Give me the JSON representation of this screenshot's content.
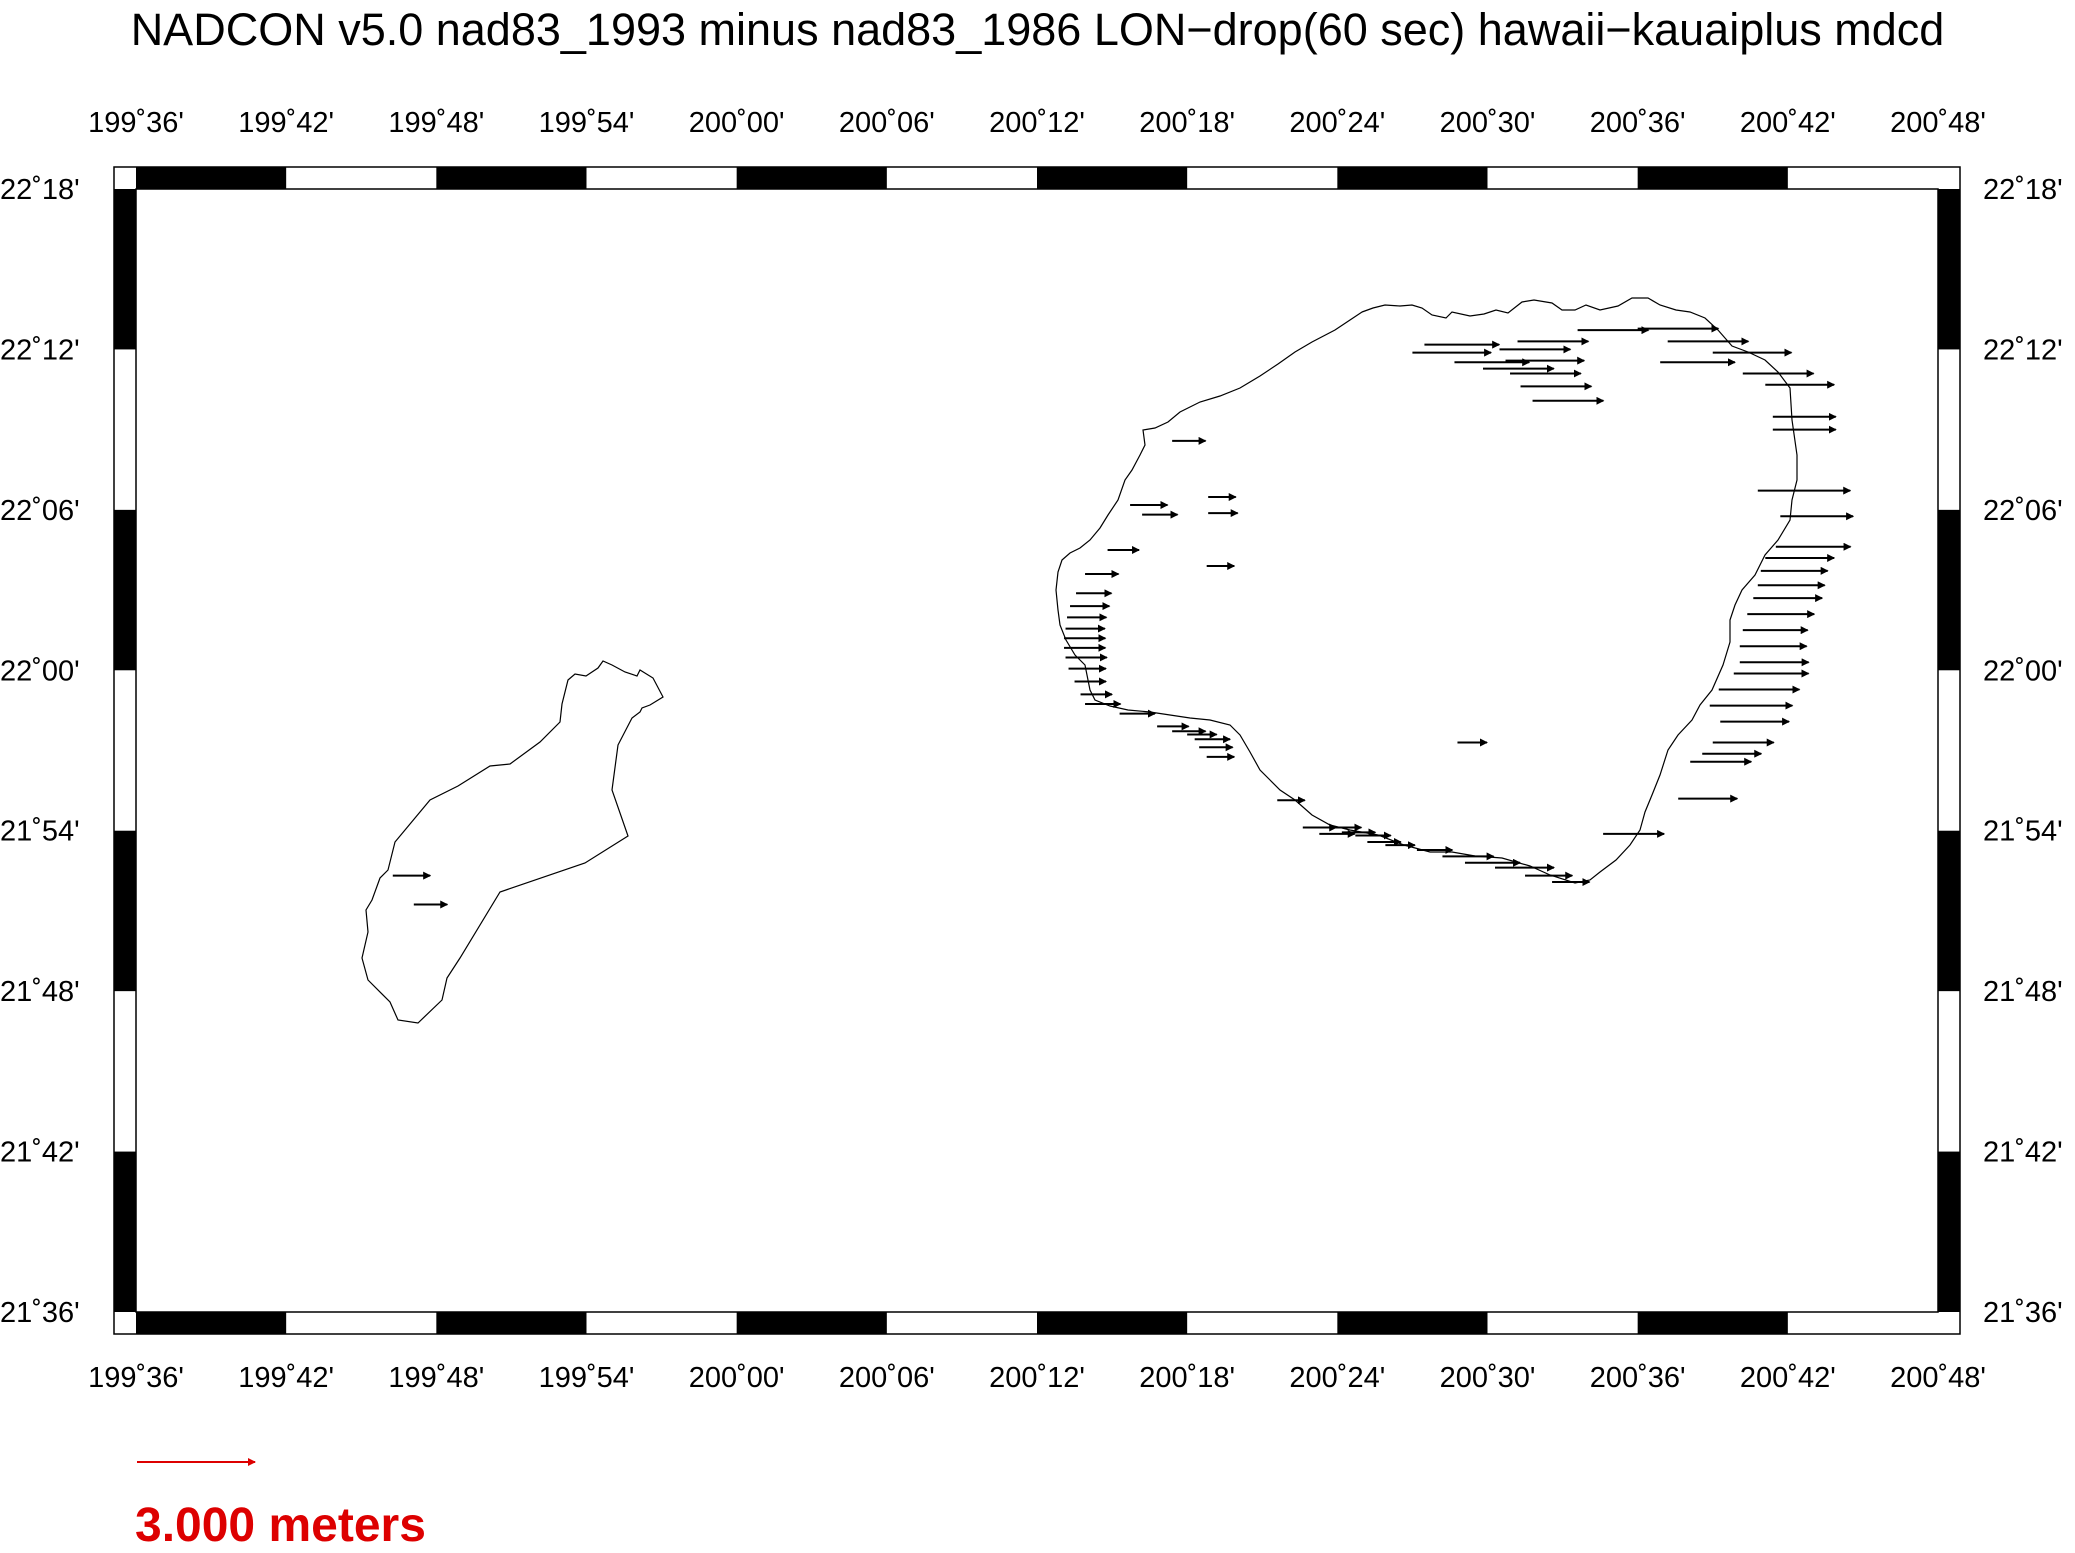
{
  "title": "NADCON v5.0 nad83_1993 minus nad83_1986 LON−drop(60 sec) hawaii−kauaiplus mdcd",
  "map": {
    "lon_range_deg": [
      199.6,
      200.8
    ],
    "lat_range_deg": [
      21.6,
      22.3
    ],
    "lon_tick_labels": [
      "199˚36'",
      "199˚42'",
      "199˚48'",
      "199˚54'",
      "200˚00'",
      "200˚06'",
      "200˚12'",
      "200˚18'",
      "200˚24'",
      "200˚30'",
      "200˚36'",
      "200˚42'",
      "200˚48'"
    ],
    "lat_tick_labels": [
      "22˚18'",
      "22˚12'",
      "22˚06'",
      "22˚00'",
      "21˚54'",
      "21˚48'",
      "21˚42'",
      "21˚36'"
    ],
    "vector_color": "#000000",
    "coastline_color": "#000000",
    "vector_units": "meters",
    "vectors_note_meters": "arrow length proportional to longitude shift"
  },
  "vectors": [
    {
      "lon": 199.771,
      "lat": 21.872,
      "len_m": 0.95
    },
    {
      "lon": 199.785,
      "lat": 21.854,
      "len_m": 0.85
    },
    {
      "lon": 200.29,
      "lat": 22.143,
      "len_m": 0.85
    },
    {
      "lon": 200.314,
      "lat": 22.108,
      "len_m": 0.7
    },
    {
      "lon": 200.314,
      "lat": 22.098,
      "len_m": 0.75
    },
    {
      "lon": 200.313,
      "lat": 22.065,
      "len_m": 0.7
    },
    {
      "lon": 200.27,
      "lat": 22.097,
      "len_m": 0.9
    },
    {
      "lon": 200.262,
      "lat": 22.103,
      "len_m": 0.95
    },
    {
      "lon": 200.247,
      "lat": 22.075,
      "len_m": 0.8
    },
    {
      "lon": 200.232,
      "lat": 22.06,
      "len_m": 0.85
    },
    {
      "lon": 200.226,
      "lat": 22.048,
      "len_m": 0.9
    },
    {
      "lon": 200.222,
      "lat": 22.04,
      "len_m": 1.0
    },
    {
      "lon": 200.22,
      "lat": 22.033,
      "len_m": 1.0
    },
    {
      "lon": 200.219,
      "lat": 22.026,
      "len_m": 1.0
    },
    {
      "lon": 200.218,
      "lat": 22.02,
      "len_m": 1.05
    },
    {
      "lon": 200.218,
      "lat": 22.014,
      "len_m": 1.05
    },
    {
      "lon": 200.219,
      "lat": 22.008,
      "len_m": 1.05
    },
    {
      "lon": 200.221,
      "lat": 22.001,
      "len_m": 0.95
    },
    {
      "lon": 200.225,
      "lat": 21.993,
      "len_m": 0.8
    },
    {
      "lon": 200.229,
      "lat": 21.985,
      "len_m": 0.8
    },
    {
      "lon": 200.232,
      "lat": 21.979,
      "len_m": 0.9
    },
    {
      "lon": 200.255,
      "lat": 21.973,
      "len_m": 0.9
    },
    {
      "lon": 200.28,
      "lat": 21.965,
      "len_m": 0.8
    },
    {
      "lon": 200.29,
      "lat": 21.962,
      "len_m": 0.85
    },
    {
      "lon": 200.3,
      "lat": 21.96,
      "len_m": 0.75
    },
    {
      "lon": 200.305,
      "lat": 21.957,
      "len_m": 0.9
    },
    {
      "lon": 200.308,
      "lat": 21.952,
      "len_m": 0.85
    },
    {
      "lon": 200.313,
      "lat": 21.946,
      "len_m": 0.7
    },
    {
      "lon": 200.36,
      "lat": 21.919,
      "len_m": 0.7
    },
    {
      "lon": 200.377,
      "lat": 21.902,
      "len_m": 0.85
    },
    {
      "lon": 200.388,
      "lat": 21.898,
      "len_m": 0.9
    },
    {
      "lon": 200.395,
      "lat": 21.902,
      "len_m": 0.8
    },
    {
      "lon": 200.403,
      "lat": 21.899,
      "len_m": 0.85
    },
    {
      "lon": 200.412,
      "lat": 21.897,
      "len_m": 0.9
    },
    {
      "lon": 200.42,
      "lat": 21.893,
      "len_m": 0.85
    },
    {
      "lon": 200.432,
      "lat": 21.891,
      "len_m": 0.75
    },
    {
      "lon": 200.453,
      "lat": 21.888,
      "len_m": 0.9
    },
    {
      "lon": 200.47,
      "lat": 21.884,
      "len_m": 1.3
    },
    {
      "lon": 200.485,
      "lat": 21.88,
      "len_m": 1.4
    },
    {
      "lon": 200.505,
      "lat": 21.877,
      "len_m": 1.5
    },
    {
      "lon": 200.525,
      "lat": 21.872,
      "len_m": 1.2
    },
    {
      "lon": 200.543,
      "lat": 21.868,
      "len_m": 0.95
    },
    {
      "lon": 200.48,
      "lat": 21.955,
      "len_m": 0.75
    },
    {
      "lon": 200.577,
      "lat": 21.898,
      "len_m": 1.55
    },
    {
      "lon": 200.627,
      "lat": 21.92,
      "len_m": 1.5
    },
    {
      "lon": 200.635,
      "lat": 21.943,
      "len_m": 1.55
    },
    {
      "lon": 200.643,
      "lat": 21.948,
      "len_m": 1.5
    },
    {
      "lon": 200.65,
      "lat": 21.955,
      "len_m": 1.55
    },
    {
      "lon": 200.655,
      "lat": 21.968,
      "len_m": 1.75
    },
    {
      "lon": 200.648,
      "lat": 21.978,
      "len_m": 2.1
    },
    {
      "lon": 200.654,
      "lat": 21.988,
      "len_m": 2.05
    },
    {
      "lon": 200.664,
      "lat": 21.998,
      "len_m": 1.9
    },
    {
      "lon": 200.668,
      "lat": 22.005,
      "len_m": 1.75
    },
    {
      "lon": 200.668,
      "lat": 22.015,
      "len_m": 1.7
    },
    {
      "lon": 200.67,
      "lat": 22.025,
      "len_m": 1.65
    },
    {
      "lon": 200.673,
      "lat": 22.035,
      "len_m": 1.7
    },
    {
      "lon": 200.677,
      "lat": 22.045,
      "len_m": 1.75
    },
    {
      "lon": 200.68,
      "lat": 22.053,
      "len_m": 1.7
    },
    {
      "lon": 200.682,
      "lat": 22.062,
      "len_m": 1.7
    },
    {
      "lon": 200.685,
      "lat": 22.07,
      "len_m": 1.75
    },
    {
      "lon": 200.692,
      "lat": 22.077,
      "len_m": 1.9
    },
    {
      "lon": 200.695,
      "lat": 22.096,
      "len_m": 1.85
    },
    {
      "lon": 200.68,
      "lat": 22.112,
      "len_m": 2.35
    },
    {
      "lon": 200.69,
      "lat": 22.15,
      "len_m": 1.6
    },
    {
      "lon": 200.69,
      "lat": 22.158,
      "len_m": 1.6
    },
    {
      "lon": 200.685,
      "lat": 22.178,
      "len_m": 1.75
    },
    {
      "lon": 200.67,
      "lat": 22.185,
      "len_m": 1.8
    },
    {
      "lon": 200.65,
      "lat": 22.198,
      "len_m": 2.0
    },
    {
      "lon": 200.62,
      "lat": 22.205,
      "len_m": 2.05
    },
    {
      "lon": 200.615,
      "lat": 22.192,
      "len_m": 1.9
    },
    {
      "lon": 200.6,
      "lat": 22.213,
      "len_m": 2.05
    },
    {
      "lon": 200.56,
      "lat": 22.212,
      "len_m": 1.8
    },
    {
      "lon": 200.508,
      "lat": 22.2,
      "len_m": 1.8
    },
    {
      "lon": 200.512,
      "lat": 22.193,
      "len_m": 2.0
    },
    {
      "lon": 200.515,
      "lat": 22.185,
      "len_m": 1.8
    },
    {
      "lon": 200.522,
      "lat": 22.177,
      "len_m": 1.8
    },
    {
      "lon": 200.53,
      "lat": 22.168,
      "len_m": 1.8
    },
    {
      "lon": 200.458,
      "lat": 22.203,
      "len_m": 1.9
    },
    {
      "lon": 200.45,
      "lat": 22.198,
      "len_m": 2.0
    },
    {
      "lon": 200.478,
      "lat": 22.192,
      "len_m": 1.9
    },
    {
      "lon": 200.497,
      "lat": 22.188,
      "len_m": 1.8
    },
    {
      "lon": 200.52,
      "lat": 22.205,
      "len_m": 1.8
    }
  ],
  "scale": {
    "label": "3.000 meters",
    "meters": 3.0,
    "color": "#dd0000"
  }
}
